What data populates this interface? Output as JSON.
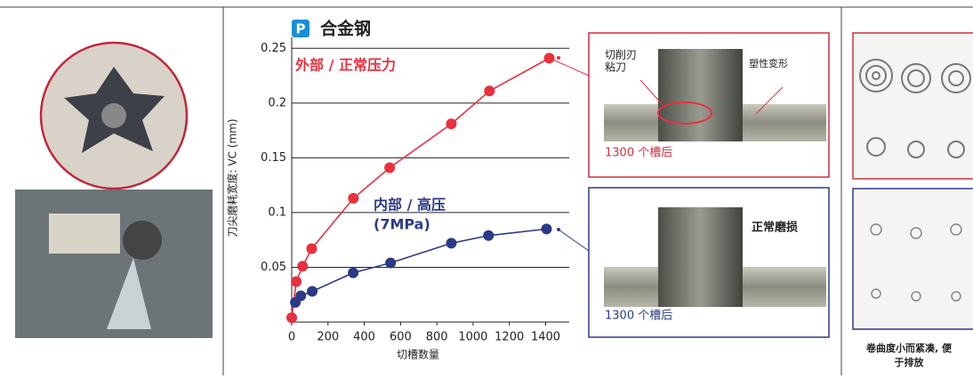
{
  "chart_data": {
    "type": "line",
    "title": "合金钢",
    "badge": "P",
    "y_label": "刀尖磨耗宽度: VC (mm)",
    "x_label": "切槽数量",
    "xlim": [
      0,
      1530
    ],
    "ylim": [
      0,
      0.26
    ],
    "xticks": [
      0,
      200,
      400,
      600,
      800,
      1000,
      1200,
      1400
    ],
    "yticks": [
      0.05,
      0.1,
      0.15,
      0.2,
      0.25
    ],
    "grid": true,
    "annotations": [
      "(7MPa)"
    ],
    "series": [
      {
        "name": "外部 / 正常压力",
        "color": "#e8303f",
        "x": [
          0,
          25,
          60,
          110,
          340,
          540,
          880,
          1090,
          1420
        ],
        "values": [
          0.004,
          0.037,
          0.051,
          0.067,
          0.113,
          0.141,
          0.181,
          0.211,
          0.241
        ]
      },
      {
        "name": "内部 / 高压",
        "color": "#2b3a87",
        "x": [
          20,
          50,
          113,
          339,
          545,
          880,
          1085,
          1405
        ],
        "values": [
          0.018,
          0.024,
          0.028,
          0.045,
          0.054,
          0.072,
          0.079,
          0.085
        ]
      }
    ]
  },
  "panels": {
    "top_box": {
      "callout_lines": [
        "切削刃",
        "粘刀"
      ],
      "deform": "塑性变形",
      "caption": "1300 个槽后"
    },
    "bottom_box": {
      "label": "正常磨损",
      "caption": "1300 个槽后"
    },
    "chips": {
      "caption_lines": [
        "卷曲度小而紧凑, 便",
        "于排放"
      ]
    }
  }
}
